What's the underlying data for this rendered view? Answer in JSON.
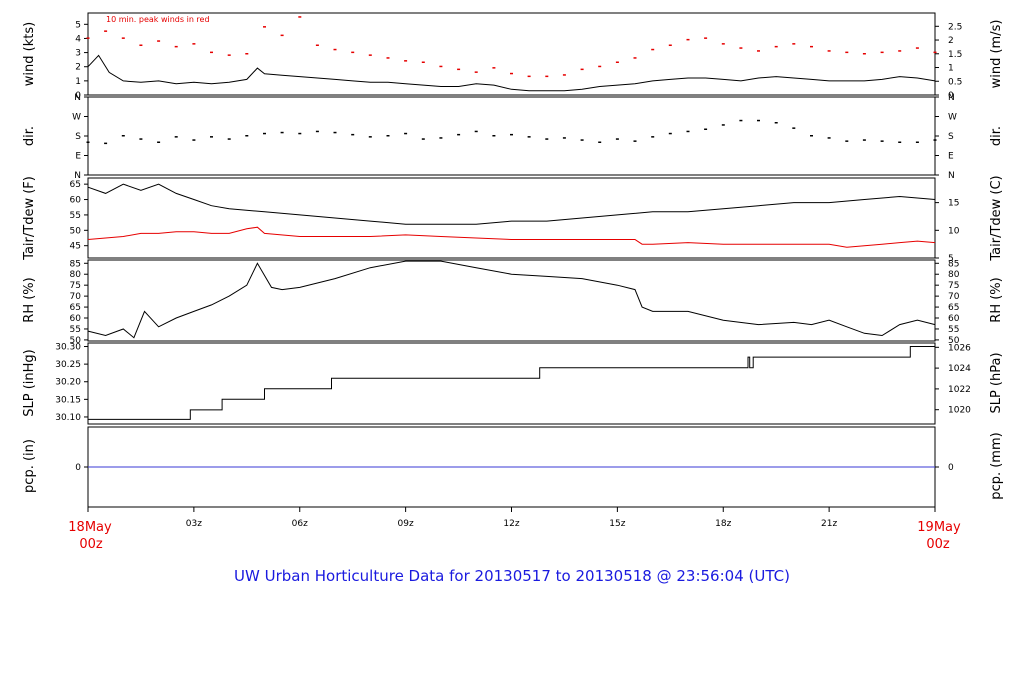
{
  "title": "UW Urban Horticulture Data for 20130517  to  20130518 @ 23:56:04  (UTC)",
  "colors": {
    "title": "#1a1adf",
    "accent_red": "#e60000",
    "line": "#000000",
    "precip": "#3a3ad6",
    "axis": "#000000"
  },
  "time_axis": {
    "start_label": [
      "18May",
      "00z"
    ],
    "end_label": [
      "19May",
      "00z"
    ],
    "ticks": [
      "03z",
      "06z",
      "09z",
      "12z",
      "15z",
      "18z",
      "21z"
    ]
  },
  "chart_data": [
    {
      "type": "line",
      "panel": "wind",
      "annotation": "10 min. peak winds in red",
      "ylabel_left": "wind (kts)",
      "ylabel_right": "wind (m/s)",
      "left_ticks": [
        "0",
        "1",
        "2",
        "3",
        "4",
        "5"
      ],
      "right_ticks": [
        "0",
        "0.5",
        "1",
        "1.5",
        "2",
        "2.5"
      ],
      "ylim": [
        0,
        5.8
      ],
      "series": [
        {
          "style": "line",
          "color": "#000000",
          "hours": [
            0,
            0.3,
            0.6,
            1,
            1.5,
            2,
            2.5,
            3,
            3.5,
            4,
            4.5,
            4.8,
            5,
            5.5,
            6,
            6.5,
            7,
            7.5,
            8,
            8.5,
            9,
            9.5,
            10,
            10.5,
            11,
            11.5,
            12,
            12.5,
            13,
            13.5,
            14,
            14.5,
            15,
            15.5,
            16,
            16.5,
            17,
            17.5,
            18,
            18.5,
            19,
            19.5,
            20,
            20.5,
            21,
            21.5,
            22,
            22.5,
            23,
            23.5,
            24
          ],
          "values": [
            2.0,
            2.8,
            1.6,
            1.0,
            0.9,
            1.0,
            0.8,
            0.9,
            0.8,
            0.9,
            1.1,
            1.9,
            1.5,
            1.4,
            1.3,
            1.2,
            1.1,
            1.0,
            0.9,
            0.9,
            0.8,
            0.7,
            0.6,
            0.6,
            0.8,
            0.7,
            0.4,
            0.3,
            0.3,
            0.3,
            0.4,
            0.6,
            0.7,
            0.8,
            1.0,
            1.1,
            1.2,
            1.2,
            1.1,
            1.0,
            1.2,
            1.3,
            1.2,
            1.1,
            1.0,
            1.0,
            1.0,
            1.1,
            1.3,
            1.2,
            1.0
          ]
        },
        {
          "style": "markers",
          "color": "#e60000",
          "hours": [
            0,
            0.5,
            1,
            1.5,
            2,
            2.5,
            3,
            3.5,
            4,
            4.5,
            5,
            5.5,
            6,
            6.5,
            7,
            7.5,
            8,
            8.5,
            9,
            9.5,
            10,
            10.5,
            11,
            11.5,
            12,
            12.5,
            13,
            13.5,
            14,
            14.5,
            15,
            15.5,
            16,
            16.5,
            17,
            17.5,
            18,
            18.5,
            19,
            19.5,
            20,
            20.5,
            21,
            21.5,
            22,
            22.5,
            23,
            23.5,
            24
          ],
          "values": [
            4.0,
            4.5,
            4.0,
            3.5,
            3.8,
            3.4,
            3.6,
            3.0,
            2.8,
            2.9,
            4.8,
            4.2,
            5.5,
            3.5,
            3.2,
            3.0,
            2.8,
            2.6,
            2.4,
            2.3,
            2.0,
            1.8,
            1.6,
            1.9,
            1.5,
            1.3,
            1.3,
            1.4,
            1.8,
            2.0,
            2.3,
            2.6,
            3.2,
            3.5,
            3.9,
            4.0,
            3.6,
            3.3,
            3.1,
            3.4,
            3.6,
            3.4,
            3.1,
            3.0,
            2.9,
            3.0,
            3.1,
            3.3,
            3.0
          ]
        }
      ]
    },
    {
      "type": "scatter",
      "panel": "dir",
      "ylabel_left": "dir.",
      "ylabel_right": "dir.",
      "left_ticks": [
        "N",
        "E",
        "S",
        "W",
        "N"
      ],
      "right_ticks": [
        "N",
        "E",
        "S",
        "W",
        "N"
      ],
      "ylim": [
        0,
        360
      ],
      "series": [
        {
          "style": "markers",
          "color": "#000000",
          "hours": [
            0,
            0.5,
            1,
            1.5,
            2,
            2.5,
            3,
            3.5,
            4,
            4.5,
            5,
            5.5,
            6,
            6.5,
            7,
            7.5,
            8,
            8.5,
            9,
            9.5,
            10,
            10.5,
            11,
            11.5,
            12,
            12.5,
            13,
            13.5,
            14,
            14.5,
            15,
            15.5,
            16,
            16.5,
            17,
            17.5,
            18,
            18.5,
            19,
            19.5,
            20,
            20.5,
            21,
            21.5,
            22,
            22.5,
            23,
            23.5,
            24
          ],
          "values": [
            150,
            145,
            180,
            165,
            150,
            175,
            160,
            175,
            165,
            180,
            190,
            195,
            190,
            200,
            195,
            185,
            175,
            180,
            190,
            165,
            170,
            185,
            200,
            180,
            185,
            175,
            165,
            170,
            160,
            150,
            165,
            155,
            175,
            190,
            200,
            210,
            230,
            250,
            250,
            240,
            215,
            180,
            170,
            155,
            160,
            155,
            150,
            150,
            160
          ]
        }
      ]
    },
    {
      "type": "line",
      "panel": "temperature",
      "ylabel_left": "Tair/Tdew (F)",
      "ylabel_right": "Tair/Tdew (C)",
      "left_ticks": [
        "45",
        "50",
        "55",
        "60",
        "65"
      ],
      "right_ticks": [
        "5",
        "10",
        "15"
      ],
      "ylim": [
        41,
        67
      ],
      "series": [
        {
          "style": "line",
          "color": "#000000",
          "hours": [
            0,
            0.5,
            1,
            1.5,
            2,
            2.5,
            3,
            3.5,
            4,
            5,
            6,
            7,
            8,
            9,
            10,
            11,
            12,
            13,
            14,
            15,
            16,
            17,
            18,
            19,
            20,
            21,
            22,
            23,
            24
          ],
          "values": [
            64,
            62,
            65,
            63,
            65,
            62,
            60,
            58,
            57,
            56,
            55,
            54,
            53,
            52,
            52,
            52,
            53,
            53,
            54,
            55,
            56,
            56,
            57,
            58,
            59,
            59,
            60,
            61,
            60
          ]
        },
        {
          "style": "line",
          "color": "#e60000",
          "hours": [
            0,
            0.5,
            1,
            1.5,
            2,
            2.5,
            3,
            3.5,
            4,
            4.5,
            4.8,
            5,
            6,
            7,
            8,
            9,
            10,
            11,
            12,
            13,
            14,
            15,
            15.5,
            15.7,
            16,
            17,
            18,
            19,
            20,
            21,
            21.5,
            22,
            22.5,
            23,
            23.5,
            24
          ],
          "values": [
            47,
            47.5,
            48,
            49,
            49,
            49.5,
            49.5,
            49,
            49,
            50.5,
            51,
            49,
            48,
            48,
            48,
            48.5,
            48,
            47.5,
            47,
            47,
            47,
            47,
            47,
            45.5,
            45.5,
            46,
            45.5,
            45.5,
            45.5,
            45.5,
            44.5,
            45,
            45.5,
            46,
            46.5,
            46
          ]
        }
      ]
    },
    {
      "type": "line",
      "panel": "rh",
      "ylabel_left": "RH (%)",
      "ylabel_right": "RH (%)",
      "left_ticks": [
        "50",
        "55",
        "60",
        "65",
        "70",
        "75",
        "80",
        "85"
      ],
      "right_ticks": [
        "50",
        "55",
        "60",
        "65",
        "70",
        "75",
        "80",
        "85"
      ],
      "ylim": [
        49.5,
        86.5
      ],
      "series": [
        {
          "style": "line",
          "color": "#000000",
          "hours": [
            0,
            0.5,
            1,
            1.3,
            1.6,
            2,
            2.5,
            3,
            3.5,
            4,
            4.5,
            4.8,
            5.2,
            5.5,
            6,
            7,
            8,
            9,
            10,
            11,
            12,
            13,
            14,
            15,
            15.5,
            15.7,
            16,
            17,
            18,
            19,
            20,
            20.5,
            21,
            21.5,
            22,
            22.5,
            23,
            23.5,
            24
          ],
          "values": [
            54,
            52,
            55,
            51,
            63,
            56,
            60,
            63,
            66,
            70,
            75,
            85,
            74,
            73,
            74,
            78,
            83,
            86,
            86,
            83,
            80,
            79,
            78,
            75,
            73,
            65,
            63,
            63,
            59,
            57,
            58,
            57,
            59,
            56,
            53,
            52,
            57,
            59,
            57
          ]
        }
      ]
    },
    {
      "type": "line",
      "panel": "slp",
      "ylabel_left": "SLP (inHg)",
      "ylabel_right": "SLP (hPa)",
      "left_ticks": [
        "30.10",
        "30.15",
        "30.20",
        "30.25",
        "30.30"
      ],
      "right_ticks": [
        "1020",
        "1022",
        "1024",
        "1026"
      ],
      "ylim": [
        30.08,
        30.31
      ],
      "series": [
        {
          "style": "step",
          "color": "#000000",
          "hours": [
            0,
            2.9,
            3.8,
            5.0,
            6.9,
            12.8,
            18.7,
            18.75,
            18.85,
            19.0,
            23.3,
            24
          ],
          "values": [
            30.093,
            30.12,
            30.15,
            30.18,
            30.21,
            30.24,
            30.27,
            30.24,
            30.27,
            30.27,
            30.3,
            30.3
          ]
        }
      ]
    },
    {
      "type": "line",
      "panel": "precip",
      "ylabel_left": "pcp. (in)",
      "ylabel_right": "pcp. (mm)",
      "left_ticks": [
        "0"
      ],
      "right_ticks": [
        "0"
      ],
      "ylim": [
        -1,
        1
      ],
      "series": [
        {
          "style": "line",
          "color": "#3a3ad6",
          "hours": [
            0,
            24
          ],
          "values": [
            0,
            0
          ]
        }
      ]
    }
  ]
}
